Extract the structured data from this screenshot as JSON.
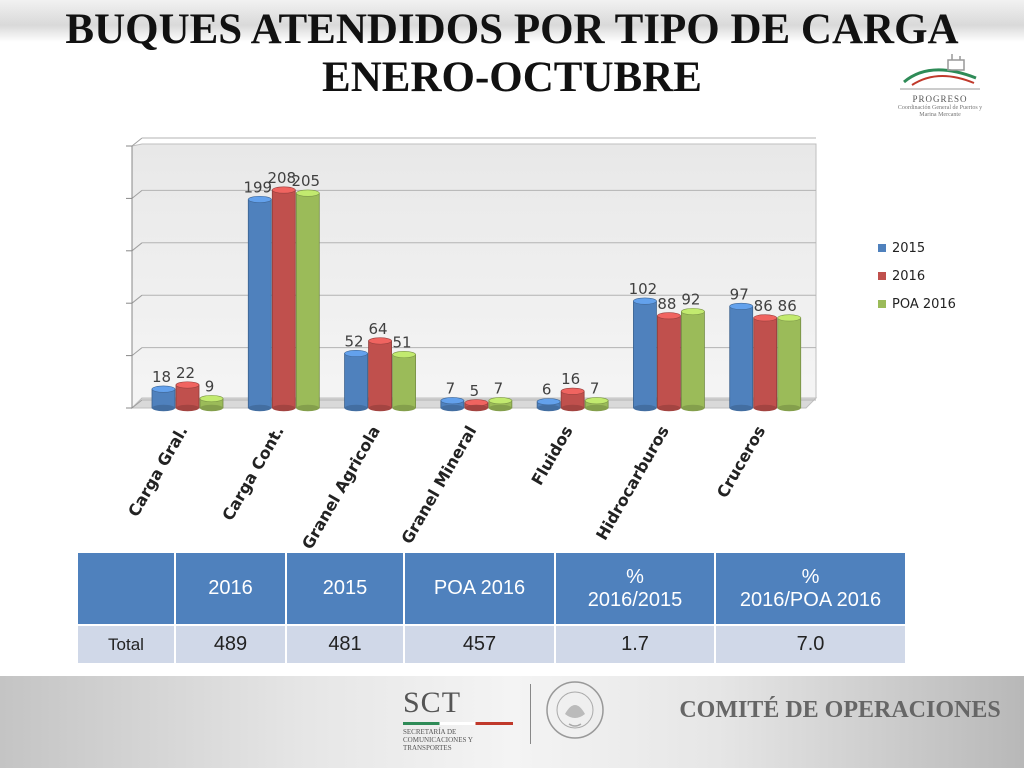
{
  "title_line1": "BUQUES ATENDIDOS POR TIPO DE CARGA",
  "title_line2": "ENERO-OCTUBRE",
  "logo": {
    "name": "PROGRESO",
    "subtitle": "Coordinación General de Puertos y Marina Mercante"
  },
  "chart_data": {
    "type": "bar",
    "categories": [
      "Carga Gral.",
      "Carga Cont.",
      "Granel Agricola",
      "Granel Mineral",
      "Fluidos",
      "Hidrocarburos",
      "Cruceros"
    ],
    "series": [
      {
        "name": "2015",
        "values": [
          18,
          199,
          52,
          7,
          6,
          102,
          97
        ],
        "color": "#4f81bd"
      },
      {
        "name": "2016",
        "values": [
          22,
          208,
          64,
          5,
          16,
          88,
          86
        ],
        "color": "#c0504d"
      },
      {
        "name": "POA 2016",
        "values": [
          9,
          205,
          51,
          7,
          7,
          92,
          86
        ],
        "color": "#9bbb59"
      }
    ],
    "ylim": [
      0,
      250
    ],
    "legend": "right",
    "grid": true
  },
  "table": {
    "headers": [
      "",
      "2016",
      "2015",
      "POA 2016",
      "% 2016/2015",
      "% 2016/POA 2016"
    ],
    "row": {
      "label": "Total",
      "values": [
        "489",
        "481",
        "457",
        "1.7",
        "7.0"
      ]
    }
  },
  "footer": {
    "sct": "SCT",
    "sct_sub": "SECRETARÍA DE COMUNICACIONES Y TRANSPORTES",
    "seal_text": "ESTADOS UNIDOS MEXICANOS",
    "committee": "COMITÉ DE OPERACIONES"
  },
  "colors": {
    "header_blue": "#4f81bd",
    "row_fill": "#d0d8e8"
  }
}
